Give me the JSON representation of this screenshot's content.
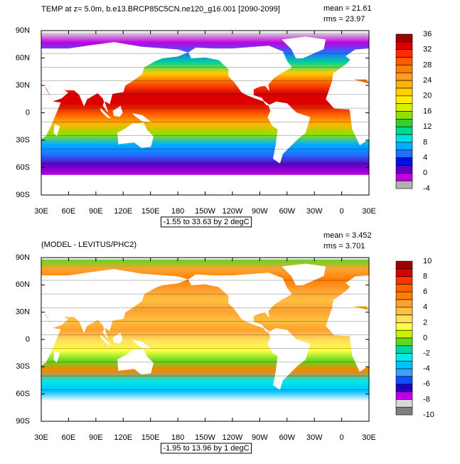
{
  "panels": [
    {
      "title": "TEMP at z=   5.0m, b.e13.BRCP85C5CN.ne120_g16.001 [2090-2099]",
      "stats": [
        "mean = 21.61",
        "rms = 23.97"
      ],
      "range_label": "-1.55 to 33.63 by 2 degC",
      "colorbar_labels": [
        "36",
        "32",
        "28",
        "24",
        "20",
        "16",
        "12",
        "8",
        "4",
        "0",
        "-4"
      ],
      "colorbar_colors": [
        "#a00000",
        "#d80000",
        "#ff2a00",
        "#ff5a00",
        "#ff8000",
        "#ff9a20",
        "#ffb400",
        "#ffd000",
        "#ffee00",
        "#d8f000",
        "#90e000",
        "#30d030",
        "#00d890",
        "#00e0e0",
        "#00b0ff",
        "#2070ff",
        "#0010e0",
        "#6000c0",
        "#c000e0",
        "#b0b0b0"
      ],
      "map_stops": [
        "#d8d8d8",
        "#c000e0",
        "#2070ff",
        "#00d890",
        "#ffd000",
        "#ff5a00",
        "#e00000",
        "#d80000",
        "#ff5a00",
        "#ffb400",
        "#90e000",
        "#00b0ff",
        "#2070ff",
        "#6000c0",
        "#c000e0"
      ]
    },
    {
      "title": "(MODEL - LEVITUS/PHC2)",
      "stats": [
        "mean = 3.452",
        "rms = 3.701"
      ],
      "range_label": "-1.95 to 13.96 by 1 degC",
      "colorbar_labels": [
        "10",
        "8",
        "6",
        "4",
        "2",
        "0",
        "-2",
        "-4",
        "-6",
        "-8",
        "-10"
      ],
      "colorbar_colors": [
        "#a00000",
        "#d80000",
        "#ff3000",
        "#ff6000",
        "#ff8000",
        "#ffa030",
        "#ffc040",
        "#ffe060",
        "#ffff40",
        "#c8f000",
        "#60d820",
        "#00d8a0",
        "#00e8e8",
        "#00c0ff",
        "#40a0ff",
        "#1050ff",
        "#2000c0",
        "#c000e0",
        "#d8d8d8",
        "#808080"
      ],
      "map_stops": [
        "#60d820",
        "#ffa030",
        "#ff8000",
        "#ffa030",
        "#ffc040",
        "#ffa030",
        "#ffc040",
        "#ffa030",
        "#ffe060",
        "#ffff40",
        "#60d820",
        "#ff8000",
        "#00e8e8",
        "#00c0ff",
        "#ffffff"
      ]
    }
  ],
  "lat_labels": [
    "90N",
    "60N",
    "30N",
    "0",
    "30S",
    "60S",
    "90S"
  ],
  "lon_labels": [
    "30E",
    "60E",
    "90E",
    "120E",
    "150E",
    "180",
    "150W",
    "120W",
    "90W",
    "60W",
    "30W",
    "0",
    "30E"
  ]
}
